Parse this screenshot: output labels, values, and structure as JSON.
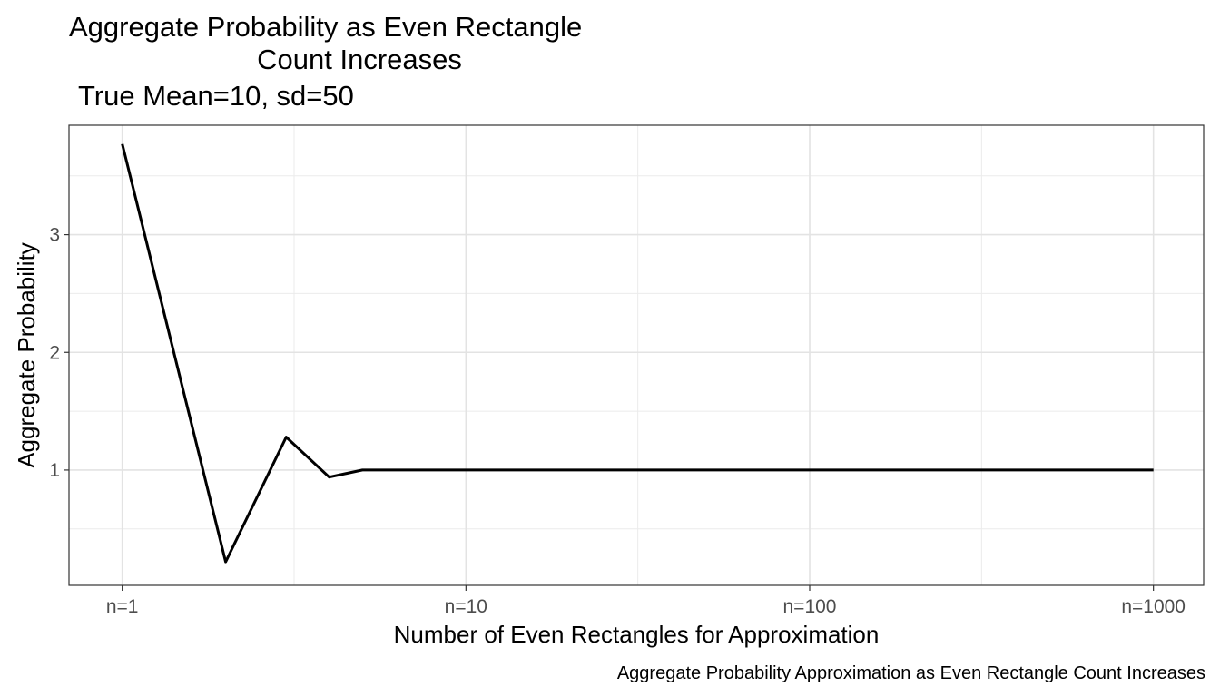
{
  "chart_data": {
    "type": "line",
    "title_lines": [
      "Aggregate Probability as Even Rectangle",
      "Count Increases"
    ],
    "subtitle": "True Mean=10, sd=50",
    "xlabel": "Number of Even Rectangles for Approximation",
    "ylabel": "Aggregate Probability",
    "caption": "Aggregate Probability Approximation as Even Rectangle Count Increases",
    "x_scale": "log10",
    "xlim": [
      0.7,
      1400
    ],
    "ylim": [
      0.02,
      3.93
    ],
    "x_ticks": [
      {
        "value": 1,
        "label": "n=1"
      },
      {
        "value": 10,
        "label": "n=10"
      },
      {
        "value": 100,
        "label": "n=100"
      },
      {
        "value": 1000,
        "label": "n=1000"
      }
    ],
    "y_ticks": [
      {
        "value": 1,
        "label": "1"
      },
      {
        "value": 2,
        "label": "2"
      },
      {
        "value": 3,
        "label": "3"
      }
    ],
    "grid": true,
    "line_color": "#000000",
    "series": [
      {
        "x": [
          1,
          2,
          3,
          4,
          5,
          6,
          7,
          8,
          9,
          10,
          20,
          50,
          100,
          200,
          500,
          1000
        ],
        "y": [
          3.77,
          0.22,
          1.28,
          0.94,
          1.0,
          1.0,
          1.0,
          1.0,
          1.0,
          1.0,
          1.0,
          1.0,
          1.0,
          1.0,
          1.0,
          1.0
        ]
      }
    ]
  }
}
